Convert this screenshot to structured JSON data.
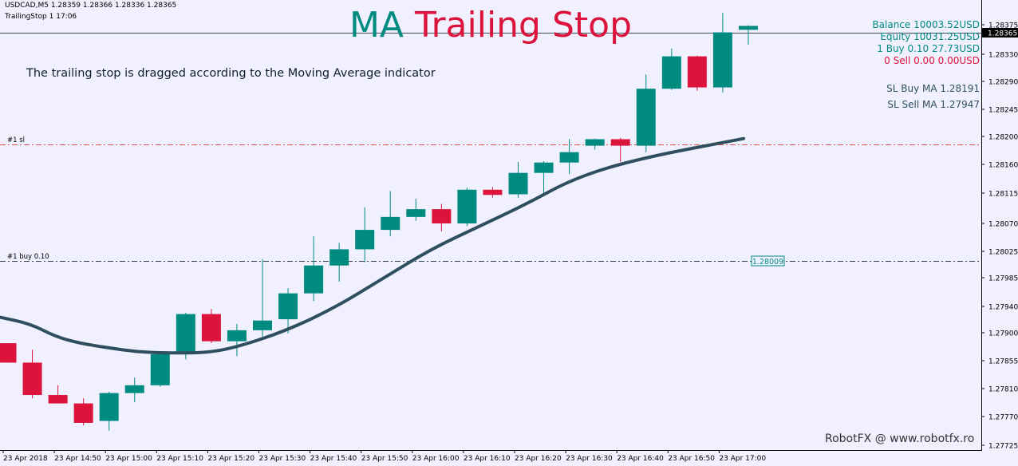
{
  "header": {
    "symbol_line": "USDCAD,M5  1.28359 1.28366 1.28336 1.28365",
    "ea_label": "TrailingStop 1 17:06"
  },
  "title": {
    "word1": "MA",
    "word2": "Trailing Stop"
  },
  "description": "The trailing stop is dragged according to the Moving Average indicator",
  "account": {
    "balance": "Balance 10003.52USD",
    "equity": "Equity 10031.25USD",
    "buy": "1 Buy 0.10 27.73USD",
    "sell": "0 Sell 0.00 0.00USD",
    "sl_buy": "SL Buy MA 1.28191",
    "sl_sell": "SL Sell MA 1.27947"
  },
  "trade_lines": {
    "sl_label": "#1 sl",
    "sl_price": 1.28191,
    "buy_label": "#1 buy 0.10",
    "buy_price": 1.28009,
    "buy_price_box": "1.28009"
  },
  "price_scale": {
    "ticks": [
      "1.28375",
      "1.28330",
      "1.28290",
      "1.28245",
      "1.28200",
      "1.28160",
      "1.28115",
      "1.28070",
      "1.28025",
      "1.27985",
      "1.27940",
      "1.27900",
      "1.27855",
      "1.27810",
      "1.27770",
      "1.27725"
    ],
    "current_price": "1.28365"
  },
  "time_axis": [
    "23 Apr 2018",
    "23 Apr 14:50",
    "23 Apr 15:00",
    "23 Apr 15:10",
    "23 Apr 15:20",
    "23 Apr 15:30",
    "23 Apr 15:40",
    "23 Apr 15:50",
    "23 Apr 16:00",
    "23 Apr 16:10",
    "23 Apr 16:20",
    "23 Apr 16:30",
    "23 Apr 16:40",
    "23 Apr 16:50",
    "23 Apr 17:00"
  ],
  "credit": "RobotFX @ www.robotfx.ro",
  "colors": {
    "bull": "#008b80",
    "bear": "#dc143c",
    "ma": "#2f4f5f",
    "sl_line": "#e05050",
    "buy_line": "#3a4a5a",
    "grid_bg": "#f0f0ff"
  },
  "chart_data": {
    "type": "candlestick",
    "timeframe": "M5",
    "y_range": [
      1.2771,
      1.28405
    ],
    "candles": [
      {
        "o": 1.27875,
        "h": 1.27875,
        "l": 1.27845,
        "c": 1.27845
      },
      {
        "o": 1.27845,
        "h": 1.27865,
        "l": 1.2779,
        "c": 1.27795
      },
      {
        "o": 1.27795,
        "h": 1.2781,
        "l": 1.27785,
        "c": 1.27782
      },
      {
        "o": 1.27782,
        "h": 1.2779,
        "l": 1.27748,
        "c": 1.27752
      },
      {
        "o": 1.27755,
        "h": 1.278,
        "l": 1.2774,
        "c": 1.27798
      },
      {
        "o": 1.27798,
        "h": 1.27822,
        "l": 1.27784,
        "c": 1.2781
      },
      {
        "o": 1.2781,
        "h": 1.2786,
        "l": 1.27808,
        "c": 1.27858
      },
      {
        "o": 1.27858,
        "h": 1.27922,
        "l": 1.2785,
        "c": 1.2792
      },
      {
        "o": 1.2792,
        "h": 1.27928,
        "l": 1.27875,
        "c": 1.27878
      },
      {
        "o": 1.27878,
        "h": 1.27905,
        "l": 1.27855,
        "c": 1.27895
      },
      {
        "o": 1.27895,
        "h": 1.28005,
        "l": 1.27885,
        "c": 1.2791
      },
      {
        "o": 1.27912,
        "h": 1.2796,
        "l": 1.2789,
        "c": 1.27952
      },
      {
        "o": 1.27952,
        "h": 1.2804,
        "l": 1.2794,
        "c": 1.27995
      },
      {
        "o": 1.27995,
        "h": 1.2803,
        "l": 1.2797,
        "c": 1.2802
      },
      {
        "o": 1.2802,
        "h": 1.28085,
        "l": 1.28,
        "c": 1.2805
      },
      {
        "o": 1.2805,
        "h": 1.2811,
        "l": 1.2804,
        "c": 1.2807
      },
      {
        "o": 1.2807,
        "h": 1.28098,
        "l": 1.28064,
        "c": 1.28082
      },
      {
        "o": 1.28082,
        "h": 1.2809,
        "l": 1.28048,
        "c": 1.2806
      },
      {
        "o": 1.2806,
        "h": 1.28115,
        "l": 1.28056,
        "c": 1.28112
      },
      {
        "o": 1.28112,
        "h": 1.28116,
        "l": 1.281,
        "c": 1.28104
      },
      {
        "o": 1.28105,
        "h": 1.28155,
        "l": 1.281,
        "c": 1.28138
      },
      {
        "o": 1.28138,
        "h": 1.28156,
        "l": 1.28103,
        "c": 1.28154
      },
      {
        "o": 1.28154,
        "h": 1.2819,
        "l": 1.28136,
        "c": 1.2817
      },
      {
        "o": 1.2818,
        "h": 1.28191,
        "l": 1.28174,
        "c": 1.2819
      },
      {
        "o": 1.2819,
        "h": 1.28192,
        "l": 1.28155,
        "c": 1.2818
      },
      {
        "o": 1.2818,
        "h": 1.2829,
        "l": 1.2817,
        "c": 1.28268
      },
      {
        "o": 1.28268,
        "h": 1.2833,
        "l": 1.28266,
        "c": 1.28318
      },
      {
        "o": 1.28318,
        "h": 1.28319,
        "l": 1.28265,
        "c": 1.2827
      },
      {
        "o": 1.2827,
        "h": 1.28385,
        "l": 1.28262,
        "c": 1.28355
      },
      {
        "o": 1.28359,
        "h": 1.28366,
        "l": 1.28336,
        "c": 1.28365
      }
    ],
    "ma_series": [
      1.27915,
      1.27905,
      1.27885,
      1.27875,
      1.27868,
      1.27862,
      1.2786,
      1.2786,
      1.2787,
      1.27895,
      1.2793,
      1.27975,
      1.2802,
      1.28055,
      1.2809,
      1.2813,
      1.2816,
      1.28191
    ]
  }
}
